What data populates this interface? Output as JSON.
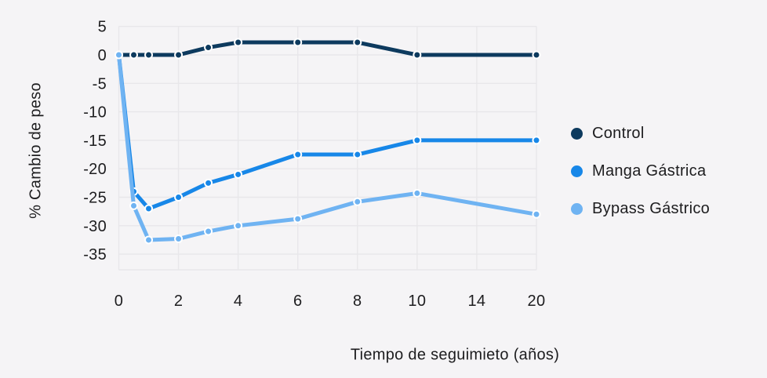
{
  "chart_data": {
    "type": "line",
    "title": "",
    "xlabel": "Tiempo de seguimieto (años)",
    "ylabel": "% Cambio de peso",
    "x": [
      0,
      0.5,
      1,
      2,
      3,
      4,
      6,
      8,
      10,
      20
    ],
    "x_tick_labels": [
      0,
      2,
      4,
      6,
      8,
      10,
      14,
      20
    ],
    "y_ticks": [
      5,
      0,
      -5,
      -10,
      -15,
      -20,
      -25,
      -30,
      -35
    ],
    "ylim": [
      -37.5,
      5
    ],
    "grid": true,
    "legend_position": "right",
    "series": [
      {
        "name": "Control",
        "color": "#0d3a5e",
        "values": [
          0,
          0,
          0,
          0,
          1.3,
          2.2,
          2.2,
          2.2,
          0,
          0
        ]
      },
      {
        "name": "Manga Gástrica",
        "color": "#1787e8",
        "values": [
          0,
          -24,
          -27,
          -25,
          -22.5,
          -21,
          -17.5,
          -17.5,
          -15,
          -15
        ]
      },
      {
        "name": "Bypass Gástrico",
        "color": "#6fb3f2",
        "values": [
          0,
          -26.5,
          -32.5,
          -32.3,
          -31,
          -30,
          -28.8,
          -25.8,
          -24.3,
          -28
        ]
      }
    ]
  },
  "colors": {
    "background": "#f5f4f6",
    "grid": "#e8e7ea",
    "text": "#1d1d1f"
  }
}
